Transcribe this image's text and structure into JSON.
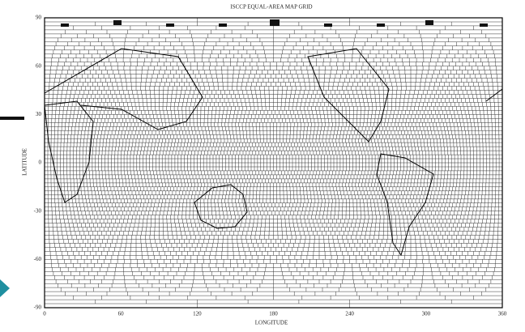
{
  "title": "ISCCP EQUAL-AREA MAP GRID",
  "y_axis": {
    "label": "LATITUDE",
    "ticks": [
      "90",
      "60",
      "30",
      "0",
      "-30",
      "-60",
      "-90"
    ]
  },
  "x_axis": {
    "label": "LONGITUDE",
    "ticks": [
      "0",
      "60",
      "120",
      "180",
      "240",
      "300",
      "360"
    ]
  }
}
